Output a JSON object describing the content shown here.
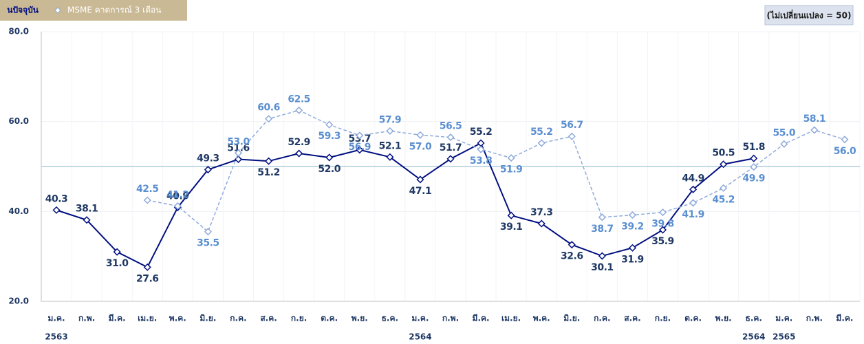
{
  "chart_data": {
    "type": "line",
    "categories": [
      "ม.ค.",
      "ก.พ.",
      "มี.ค.",
      "เม.ย.",
      "พ.ค.",
      "มิ.ย.",
      "ก.ค.",
      "ส.ค.",
      "ก.ย.",
      "ต.ค.",
      "พ.ย.",
      "ธ.ค.",
      "ม.ค.",
      "ก.พ.",
      "มี.ค.",
      "เม.ย.",
      "พ.ค.",
      "มิ.ย.",
      "ก.ค.",
      "ส.ค.",
      "ก.ย.",
      "ต.ค.",
      "พ.ย.",
      "ธ.ค.",
      "ม.ค.",
      "ก.พ.",
      "มี.ค."
    ],
    "years": [
      "2563",
      null,
      null,
      null,
      null,
      null,
      null,
      null,
      null,
      null,
      null,
      null,
      "2564",
      null,
      null,
      null,
      null,
      null,
      null,
      null,
      null,
      null,
      null,
      "2564",
      "2565",
      null,
      null
    ],
    "series": [
      {
        "name": "นปัจจุบัน",
        "color": "#000f80",
        "values": [
          40.3,
          38.1,
          31.0,
          27.6,
          40.9,
          49.3,
          51.6,
          51.2,
          52.9,
          52.0,
          53.7,
          52.1,
          47.1,
          51.7,
          55.2,
          39.1,
          37.3,
          32.6,
          30.1,
          31.9,
          35.9,
          44.9,
          50.5,
          51.8,
          null,
          null,
          null
        ],
        "value_labels": [
          "40.3",
          "38.1",
          "31.0",
          "27.6",
          "40.9",
          "49.3",
          "51.6",
          "51.2",
          "52.9",
          "52.0",
          "53.7",
          "52.1",
          "47.1",
          "51.7",
          "55.2",
          "39.1",
          "37.3",
          "32.6",
          "30.1",
          "31.9",
          "35.9",
          "44.9",
          "50.5",
          "51.8",
          null,
          null,
          null
        ]
      },
      {
        "name": "MSME คาดการณ์ 3 เดือน",
        "color": "#8eaadb",
        "values": [
          null,
          null,
          null,
          42.5,
          41.2,
          35.5,
          53.0,
          60.6,
          62.5,
          59.3,
          56.9,
          57.9,
          57.0,
          56.5,
          53.8,
          51.9,
          55.2,
          56.7,
          38.7,
          39.2,
          39.8,
          41.9,
          45.2,
          49.9,
          55.0,
          58.1,
          56.0
        ],
        "value_labels": [
          null,
          null,
          null,
          "42.5",
          "41.2",
          "35.5",
          "53.0",
          "60.6",
          "62.5",
          "59.3",
          "56.9",
          "57.9",
          "57.0",
          "56.5",
          "53.8",
          "51.9",
          "55.2",
          "56.7",
          "38.7",
          "39.2",
          "39.8",
          "41.9",
          "45.2",
          "49.9",
          "55.0",
          "58.1",
          "56.0"
        ]
      }
    ],
    "reference_line": 50,
    "reference_label": "(ไม่เปลี่ยนแปลง = 50)",
    "ylim": [
      20,
      80
    ],
    "yticks": [
      {
        "value": 20,
        "label": "20.0"
      },
      {
        "value": 40,
        "label": "40.0"
      },
      {
        "value": 60,
        "label": "60.0"
      },
      {
        "value": 80,
        "label": "80.0"
      }
    ],
    "grid": true
  }
}
